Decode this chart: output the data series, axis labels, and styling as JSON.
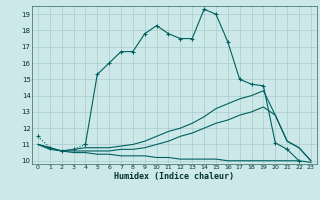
{
  "title": "",
  "xlabel": "Humidex (Indice chaleur)",
  "background_color": "#cce8e8",
  "grid_color": "#aacccc",
  "line_color": "#006060",
  "xlim": [
    -0.5,
    23.5
  ],
  "ylim": [
    9.8,
    19.5
  ],
  "yticks": [
    10,
    11,
    12,
    13,
    14,
    15,
    16,
    17,
    18,
    19
  ],
  "xticks": [
    0,
    1,
    2,
    3,
    4,
    5,
    6,
    7,
    8,
    9,
    10,
    11,
    12,
    13,
    14,
    15,
    16,
    17,
    18,
    19,
    20,
    21,
    22,
    23
  ],
  "line1_dotted_x": [
    0,
    1,
    2,
    3,
    4
  ],
  "line1_dotted_y": [
    11.5,
    10.8,
    10.6,
    10.7,
    11.0
  ],
  "line1_solid_x": [
    4,
    5,
    6,
    7,
    8,
    9,
    10,
    11,
    12,
    13,
    14,
    15,
    16,
    17,
    18,
    19,
    20,
    21,
    22
  ],
  "line1_solid_y": [
    11.0,
    15.3,
    16.0,
    16.7,
    16.7,
    17.8,
    18.3,
    17.8,
    17.5,
    17.5,
    19.3,
    19.0,
    17.3,
    15.0,
    14.7,
    14.6,
    11.1,
    10.7,
    10.0
  ],
  "line2_x": [
    0,
    1,
    2,
    3,
    4,
    5,
    6,
    7,
    8,
    9,
    10,
    11,
    12,
    13,
    14,
    15,
    16,
    17,
    18,
    19,
    20,
    21,
    22,
    23
  ],
  "line2_y": [
    11.0,
    10.8,
    10.6,
    10.7,
    10.8,
    10.8,
    10.8,
    10.9,
    11.0,
    11.2,
    11.5,
    11.8,
    12.0,
    12.3,
    12.7,
    13.2,
    13.5,
    13.8,
    14.0,
    14.3,
    12.8,
    11.2,
    10.8,
    10.0
  ],
  "line3_x": [
    0,
    1,
    2,
    3,
    4,
    5,
    6,
    7,
    8,
    9,
    10,
    11,
    12,
    13,
    14,
    15,
    16,
    17,
    18,
    19,
    20,
    21,
    22,
    23
  ],
  "line3_y": [
    11.0,
    10.8,
    10.6,
    10.6,
    10.6,
    10.6,
    10.6,
    10.7,
    10.7,
    10.8,
    11.0,
    11.2,
    11.5,
    11.7,
    12.0,
    12.3,
    12.5,
    12.8,
    13.0,
    13.3,
    12.8,
    11.2,
    10.8,
    10.0
  ],
  "line4_x": [
    0,
    1,
    2,
    3,
    4,
    5,
    6,
    7,
    8,
    9,
    10,
    11,
    12,
    13,
    14,
    15,
    16,
    17,
    18,
    19,
    20,
    21,
    22,
    23
  ],
  "line4_y": [
    11.0,
    10.7,
    10.6,
    10.5,
    10.5,
    10.4,
    10.4,
    10.3,
    10.3,
    10.3,
    10.2,
    10.2,
    10.1,
    10.1,
    10.1,
    10.1,
    10.0,
    10.0,
    10.0,
    10.0,
    10.0,
    10.0,
    10.0,
    9.9
  ]
}
